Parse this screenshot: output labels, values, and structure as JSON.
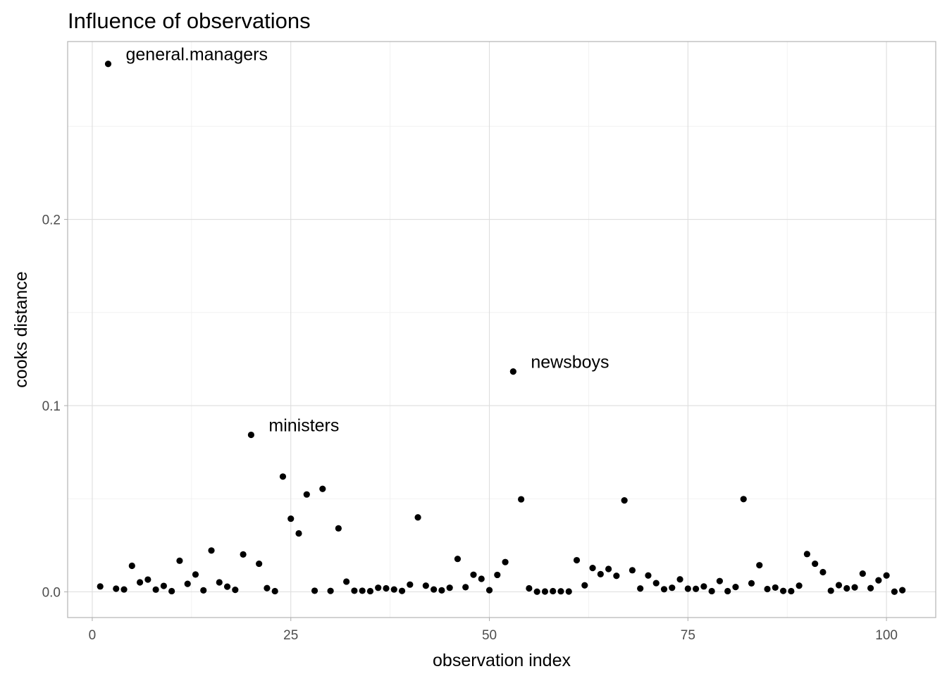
{
  "chart_data": {
    "type": "scatter",
    "title": "Influence of observations",
    "xlabel": "observation index",
    "ylabel": "cooks distance",
    "xlim": [
      -3.1,
      106.2
    ],
    "ylim": [
      -0.0138,
      0.2955
    ],
    "x_ticks": [
      0,
      25,
      50,
      75,
      100
    ],
    "x_tick_labels": [
      "0",
      "25",
      "50",
      "75",
      "100"
    ],
    "y_ticks": [
      0.0,
      0.1,
      0.2
    ],
    "y_tick_labels": [
      "0.0",
      "0.1",
      "0.2"
    ],
    "grid": true,
    "legend": "none",
    "point_color": "#000000",
    "x": [
      1,
      2,
      3,
      4,
      5,
      6,
      7,
      8,
      9,
      10,
      11,
      12,
      13,
      14,
      15,
      16,
      17,
      18,
      19,
      20,
      21,
      22,
      23,
      24,
      25,
      26,
      27,
      28,
      29,
      30,
      31,
      32,
      33,
      34,
      35,
      36,
      37,
      38,
      39,
      40,
      41,
      42,
      43,
      44,
      45,
      46,
      47,
      48,
      49,
      50,
      51,
      52,
      53,
      54,
      55,
      56,
      57,
      58,
      59,
      60,
      61,
      62,
      63,
      64,
      65,
      66,
      67,
      68,
      69,
      70,
      71,
      72,
      73,
      74,
      75,
      76,
      77,
      78,
      79,
      80,
      81,
      82,
      83,
      84,
      85,
      86,
      87,
      88,
      89,
      90,
      91,
      92,
      93,
      94,
      95,
      96,
      97,
      98,
      99,
      100,
      101,
      102
    ],
    "y": [
      0.0029,
      0.2835,
      0.0017,
      0.0013,
      0.014,
      0.0051,
      0.0066,
      0.0012,
      0.0032,
      0.0004,
      0.0167,
      0.0043,
      0.0093,
      0.0008,
      0.0222,
      0.0051,
      0.0028,
      0.0011,
      0.0201,
      0.0843,
      0.0151,
      0.002,
      0.0004,
      0.0619,
      0.0393,
      0.0314,
      0.0523,
      0.0006,
      0.0553,
      0.0005,
      0.0341,
      0.0055,
      0.0006,
      0.0006,
      0.0004,
      0.0022,
      0.0019,
      0.0013,
      0.0005,
      0.0039,
      0.04,
      0.0033,
      0.0013,
      0.0008,
      0.0022,
      0.0177,
      0.0025,
      0.0092,
      0.007,
      0.0009,
      0.0091,
      0.016,
      0.1183,
      0.0497,
      0.0019,
      0.0001,
      0.0002,
      0.0004,
      0.0003,
      0.0002,
      0.017,
      0.0035,
      0.0128,
      0.0095,
      0.0123,
      0.0086,
      0.0491,
      0.0116,
      0.0018,
      0.0088,
      0.0047,
      0.0014,
      0.0022,
      0.0067,
      0.0017,
      0.0016,
      0.0029,
      0.0004,
      0.0058,
      0.0004,
      0.0026,
      0.0498,
      0.0046,
      0.0143,
      0.0015,
      0.0023,
      0.0005,
      0.0004,
      0.0033,
      0.0203,
      0.0151,
      0.0106,
      0.0006,
      0.0036,
      0.0019,
      0.0024,
      0.0098,
      0.002,
      0.0062,
      0.0088,
      0.0001,
      0.0009
    ],
    "annotations": [
      {
        "text": "general.managers",
        "x": 2,
        "y": 0.2835
      },
      {
        "text": "ministers",
        "x": 20,
        "y": 0.0843
      },
      {
        "text": "newsboys",
        "x": 53,
        "y": 0.1183
      }
    ]
  }
}
